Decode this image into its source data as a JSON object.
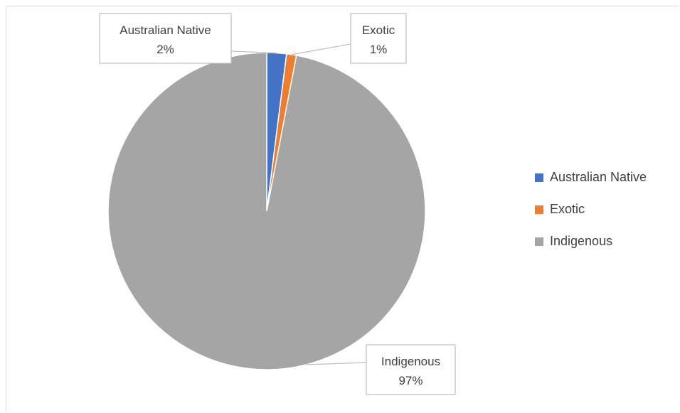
{
  "chart_data": {
    "type": "pie",
    "categories": [
      "Australian Native",
      "Exotic",
      "Indigenous"
    ],
    "values": [
      2,
      1,
      97
    ],
    "colors": [
      "#4472c4",
      "#ed7d31",
      "#a5a5a5"
    ],
    "data_labels": [
      {
        "category": "Australian Native",
        "percent": "2%"
      },
      {
        "category": "Exotic",
        "percent": "1%"
      },
      {
        "category": "Indigenous",
        "percent": "97%"
      }
    ],
    "title": "",
    "legend_position": "right"
  }
}
